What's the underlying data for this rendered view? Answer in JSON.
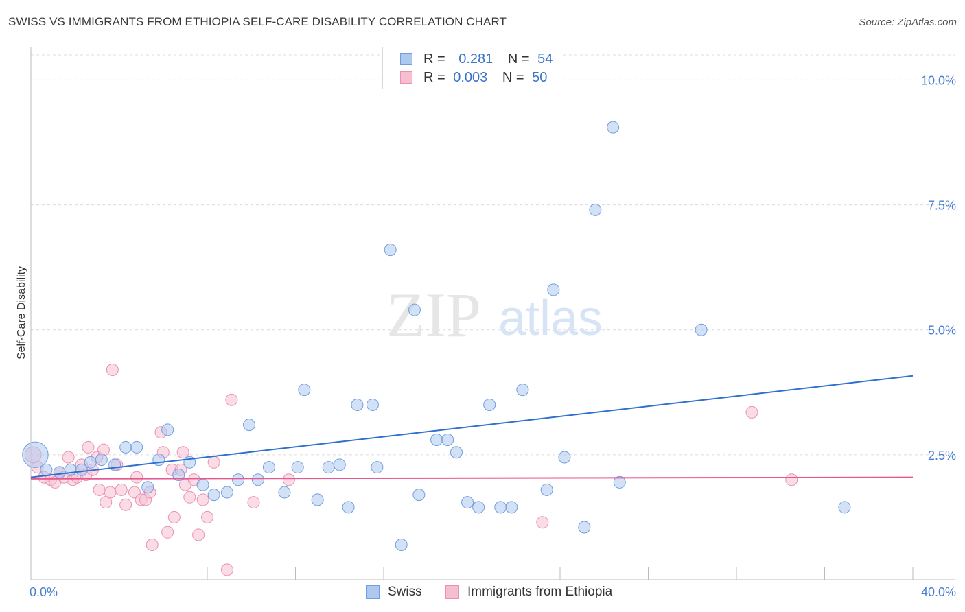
{
  "title": "SWISS VS IMMIGRANTS FROM ETHIOPIA SELF-CARE DISABILITY CORRELATION CHART",
  "source": "Source: ZipAtlas.com",
  "watermark": {
    "zip": "ZIP",
    "atlas": "atlas"
  },
  "legend_top": [
    {
      "r_label": "R =",
      "r_value": "0.281",
      "n_label": "N =",
      "n_value": "54"
    },
    {
      "r_label": "R =",
      "r_value": "0.003",
      "n_label": "N =",
      "n_value": "50"
    }
  ],
  "legend_bottom": [
    "Swiss",
    "Immigrants from Ethiopia"
  ],
  "colors": {
    "swiss_fill": "#aec9ef",
    "swiss_stroke": "#6f9fe0",
    "swiss_line": "#2f6fce",
    "eth_fill": "#f6bfd1",
    "eth_stroke": "#ec8fb0",
    "eth_line": "#e8568f",
    "tick_text": "#4a7fcf",
    "grid": "#dcdcdc"
  },
  "chart_data": {
    "type": "scatter",
    "xlabel": "",
    "ylabel": "Self-Care Disability",
    "xlim": [
      0,
      40
    ],
    "ylim": [
      0,
      10.5
    ],
    "x_tick_labels": [
      {
        "v": 0,
        "label": "0.0%"
      },
      {
        "v": 40,
        "label": "40.0%"
      }
    ],
    "x_minor_ticks": [
      0,
      4,
      8,
      12,
      16,
      20,
      24,
      28,
      32,
      36,
      40
    ],
    "y_ticks": [
      {
        "v": 2.5,
        "label": "2.5%"
      },
      {
        "v": 5.0,
        "label": "5.0%"
      },
      {
        "v": 7.5,
        "label": "7.5%"
      },
      {
        "v": 10.0,
        "label": "10.0%"
      }
    ],
    "grid": true,
    "series": [
      {
        "name": "Swiss",
        "trend": [
          [
            0,
            2.05
          ],
          [
            40,
            4.08
          ]
        ],
        "points": [
          [
            0.2,
            2.5,
            2.2
          ],
          [
            0.7,
            2.2,
            1
          ],
          [
            1.3,
            2.15,
            1
          ],
          [
            1.8,
            2.2,
            1
          ],
          [
            2.3,
            2.2,
            1
          ],
          [
            2.7,
            2.35,
            1
          ],
          [
            3.2,
            2.4,
            1
          ],
          [
            3.8,
            2.3,
            1
          ],
          [
            4.3,
            2.65,
            1
          ],
          [
            4.8,
            2.65,
            1
          ],
          [
            5.3,
            1.85,
            1
          ],
          [
            5.8,
            2.4,
            1
          ],
          [
            6.2,
            3.0,
            1
          ],
          [
            6.7,
            2.1,
            1
          ],
          [
            7.2,
            2.35,
            1
          ],
          [
            7.8,
            1.9,
            1
          ],
          [
            8.3,
            1.7,
            1
          ],
          [
            8.9,
            1.75,
            1
          ],
          [
            9.4,
            2.0,
            1
          ],
          [
            9.9,
            3.1,
            1
          ],
          [
            10.3,
            2.0,
            1
          ],
          [
            10.8,
            2.25,
            1
          ],
          [
            11.5,
            1.75,
            1
          ],
          [
            12.1,
            2.25,
            1
          ],
          [
            12.4,
            3.8,
            1
          ],
          [
            13.0,
            1.6,
            1
          ],
          [
            13.5,
            2.25,
            1
          ],
          [
            14.0,
            2.3,
            1
          ],
          [
            14.4,
            1.45,
            1
          ],
          [
            14.8,
            3.5,
            1
          ],
          [
            15.5,
            3.5,
            1
          ],
          [
            15.7,
            2.25,
            1
          ],
          [
            16.3,
            6.6,
            1
          ],
          [
            16.8,
            0.7,
            1
          ],
          [
            17.4,
            5.4,
            1
          ],
          [
            17.6,
            1.7,
            1
          ],
          [
            18.4,
            2.8,
            1
          ],
          [
            18.9,
            2.8,
            1
          ],
          [
            19.3,
            2.55,
            1
          ],
          [
            19.8,
            1.55,
            1
          ],
          [
            20.3,
            1.45,
            1
          ],
          [
            20.8,
            3.5,
            1
          ],
          [
            21.3,
            1.45,
            1
          ],
          [
            21.8,
            1.45,
            1
          ],
          [
            22.3,
            3.8,
            1
          ],
          [
            23.4,
            1.8,
            1
          ],
          [
            23.7,
            5.8,
            1
          ],
          [
            24.2,
            2.45,
            1
          ],
          [
            25.1,
            1.05,
            1
          ],
          [
            25.6,
            7.4,
            1
          ],
          [
            26.4,
            9.05,
            1
          ],
          [
            26.7,
            1.95,
            1
          ],
          [
            30.4,
            5.0,
            1
          ],
          [
            36.9,
            1.45,
            1
          ]
        ]
      },
      {
        "name": "Immigrants from Ethiopia",
        "trend": [
          [
            0,
            2.02
          ],
          [
            40,
            2.05
          ]
        ],
        "points": [
          [
            0.1,
            2.5,
            1.4
          ],
          [
            0.3,
            2.25,
            1
          ],
          [
            0.6,
            2.05,
            1
          ],
          [
            0.9,
            2.0,
            1
          ],
          [
            1.1,
            1.95,
            1
          ],
          [
            1.3,
            2.15,
            1
          ],
          [
            1.5,
            2.05,
            1
          ],
          [
            1.7,
            2.45,
            1
          ],
          [
            1.9,
            2.0,
            1
          ],
          [
            2.1,
            2.05,
            1
          ],
          [
            2.3,
            2.3,
            1
          ],
          [
            2.5,
            2.1,
            1
          ],
          [
            2.6,
            2.65,
            1
          ],
          [
            2.8,
            2.2,
            1
          ],
          [
            3.0,
            2.45,
            1
          ],
          [
            3.1,
            1.8,
            1
          ],
          [
            3.3,
            2.6,
            1
          ],
          [
            3.4,
            1.55,
            1
          ],
          [
            3.6,
            1.75,
            1
          ],
          [
            3.7,
            4.2,
            1
          ],
          [
            3.9,
            2.3,
            1
          ],
          [
            4.1,
            1.8,
            1
          ],
          [
            4.3,
            1.5,
            1
          ],
          [
            4.7,
            1.75,
            1
          ],
          [
            4.8,
            2.05,
            1
          ],
          [
            5.0,
            1.6,
            1
          ],
          [
            5.2,
            1.6,
            1
          ],
          [
            5.4,
            1.75,
            1
          ],
          [
            5.5,
            0.7,
            1
          ],
          [
            5.9,
            2.95,
            1
          ],
          [
            6.0,
            2.55,
            1
          ],
          [
            6.2,
            0.95,
            1
          ],
          [
            6.4,
            2.2,
            1
          ],
          [
            6.5,
            1.25,
            1
          ],
          [
            6.8,
            2.2,
            1
          ],
          [
            6.9,
            2.55,
            1
          ],
          [
            7.0,
            1.9,
            1
          ],
          [
            7.2,
            1.65,
            1
          ],
          [
            7.4,
            2.0,
            1
          ],
          [
            7.6,
            0.9,
            1
          ],
          [
            7.8,
            1.6,
            1
          ],
          [
            8.0,
            1.25,
            1
          ],
          [
            8.3,
            2.35,
            1
          ],
          [
            8.9,
            0.2,
            1
          ],
          [
            9.1,
            3.6,
            1
          ],
          [
            10.1,
            1.55,
            1
          ],
          [
            11.7,
            2.0,
            1
          ],
          [
            23.2,
            1.15,
            1
          ],
          [
            32.7,
            3.35,
            1
          ],
          [
            34.5,
            2.0,
            1
          ]
        ]
      }
    ]
  }
}
